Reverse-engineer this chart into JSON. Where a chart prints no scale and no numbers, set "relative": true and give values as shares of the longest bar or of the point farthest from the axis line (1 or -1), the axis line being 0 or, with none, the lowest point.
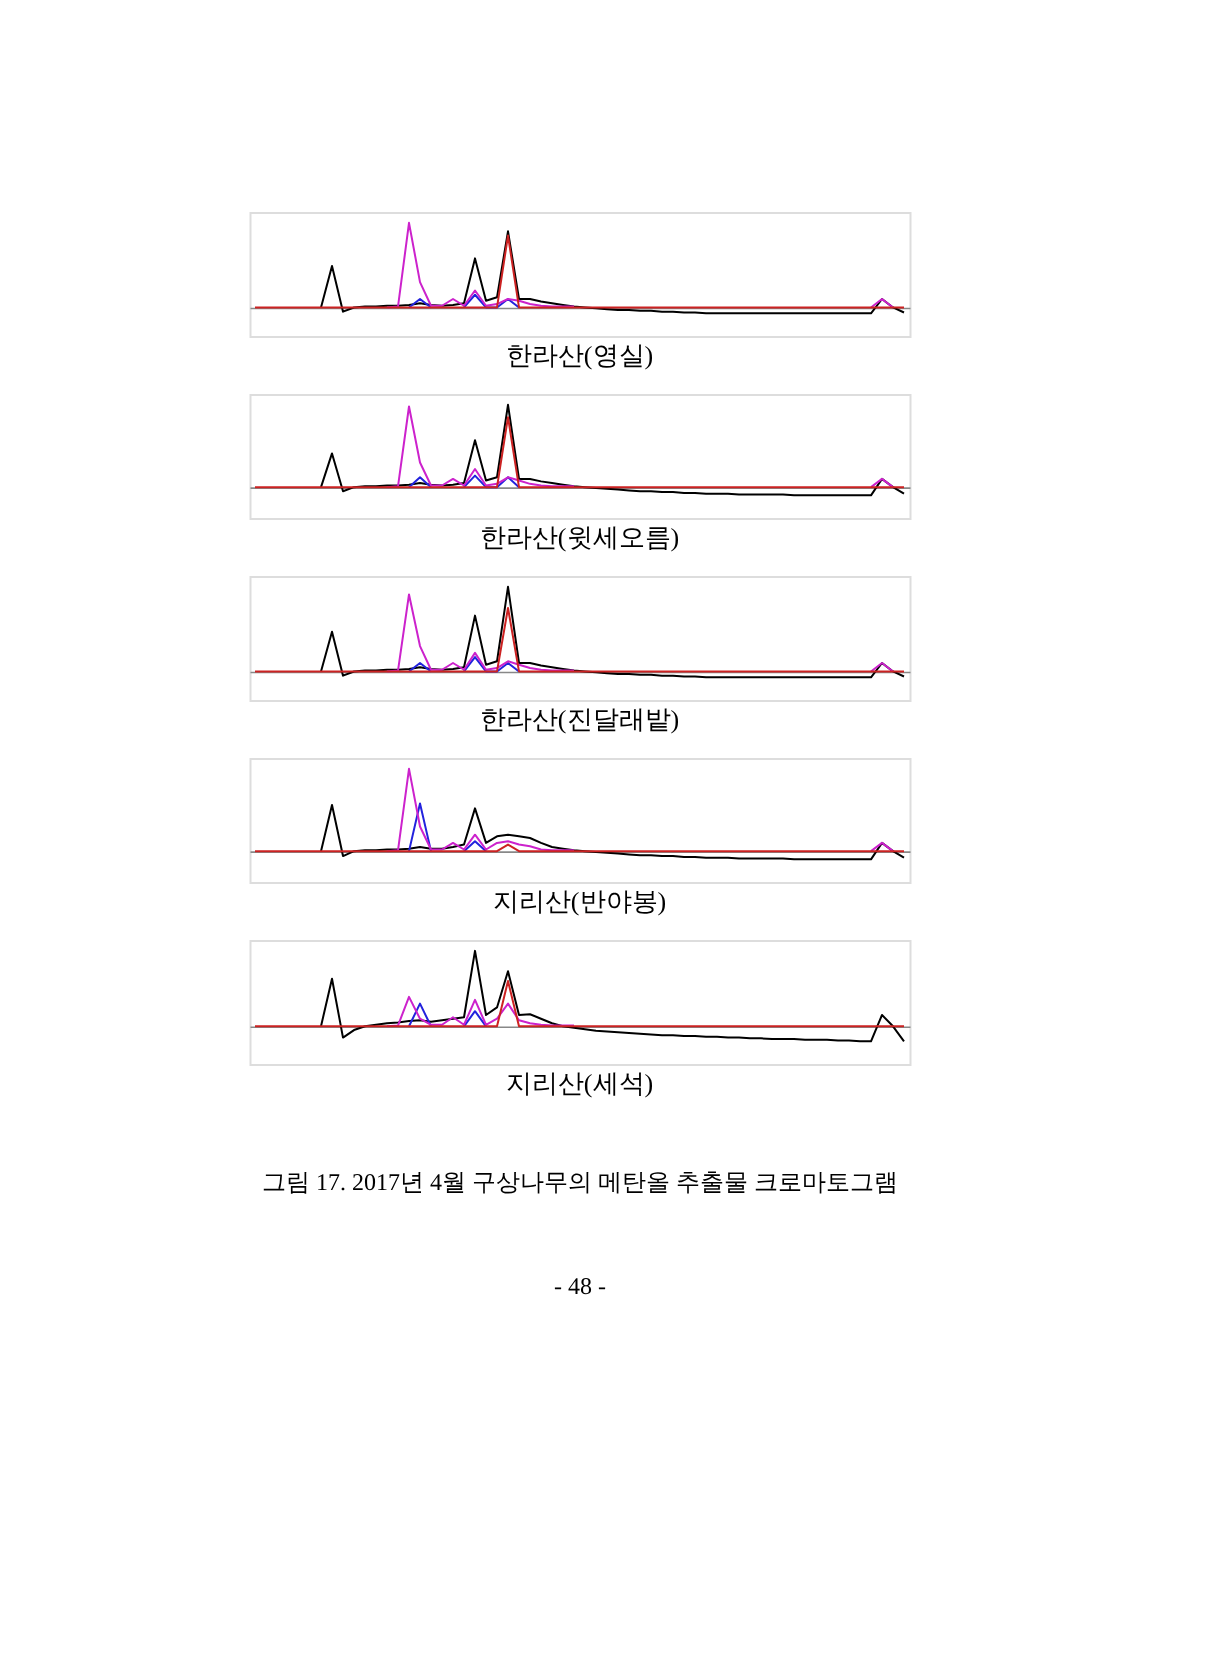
{
  "chart_data": [
    {
      "type": "line",
      "relative": true,
      "title": "한라산(영실)",
      "categories": [
        null,
        null,
        null,
        null,
        null,
        null,
        null,
        null,
        null,
        null,
        null,
        null,
        null,
        null,
        null,
        null,
        null,
        null,
        null,
        null,
        null,
        null,
        null,
        null,
        null,
        null,
        null,
        null,
        null,
        null,
        null,
        null,
        null,
        null,
        null,
        null,
        null,
        null,
        null,
        null,
        null,
        null,
        null,
        null,
        null,
        null,
        null,
        null,
        null,
        null,
        null,
        null,
        null,
        null,
        null,
        null,
        null,
        null,
        null,
        null
      ],
      "series": [
        {
          "color": "#000000",
          "values": [
            null,
            null,
            null,
            null,
            null,
            null,
            0,
            0.49,
            -0.05,
            0,
            0.01,
            0.01,
            0.02,
            0.02,
            0.03,
            0.05,
            0.03,
            0.02,
            0.03,
            0.05,
            0.58,
            0.08,
            0.12,
            0.9,
            0.1,
            0.1,
            0.07,
            0.05,
            0.03,
            0.01,
            0,
            -0.01,
            -0.02,
            -0.03,
            -0.03,
            -0.04,
            -0.04,
            -0.05,
            -0.05,
            -0.06,
            -0.06,
            -0.07,
            -0.07,
            -0.07,
            -0.07,
            -0.07,
            -0.07,
            -0.07,
            -0.07,
            -0.07,
            -0.07,
            -0.07,
            -0.07,
            -0.07,
            -0.07,
            -0.07,
            -0.07,
            0.1,
            0,
            -0.06
          ]
        },
        {
          "color": "#2222dd",
          "values": [
            null,
            null,
            null,
            null,
            null,
            null,
            null,
            null,
            null,
            null,
            null,
            null,
            null,
            null,
            0,
            0.1,
            0,
            null,
            null,
            0,
            0.15,
            0,
            0,
            0.1,
            0,
            null,
            null,
            null,
            null,
            null,
            null,
            null,
            null,
            null,
            null,
            null,
            null,
            null,
            null,
            null,
            null,
            null,
            null,
            null,
            null,
            null,
            null,
            null,
            null,
            null,
            null,
            null,
            null,
            null,
            null,
            null,
            null,
            null,
            null,
            null
          ]
        },
        {
          "color": "#cc22cc",
          "values": [
            null,
            null,
            null,
            null,
            null,
            null,
            null,
            null,
            null,
            null,
            null,
            null,
            0,
            0.01,
            1.0,
            0.3,
            0.02,
            0.02,
            0.1,
            0.02,
            0.2,
            0.02,
            0.04,
            0.1,
            0.08,
            0.04,
            0.02,
            0.01,
            0.01,
            0.01,
            null,
            null,
            null,
            null,
            null,
            null,
            null,
            null,
            null,
            null,
            null,
            null,
            null,
            null,
            null,
            null,
            null,
            null,
            null,
            null,
            null,
            null,
            null,
            null,
            null,
            null,
            0,
            0.1,
            0,
            null
          ]
        },
        {
          "color": "#cc2222",
          "values": [
            0,
            0,
            0,
            0,
            0,
            0,
            0,
            0,
            0,
            0,
            0,
            0,
            0,
            0,
            0,
            0,
            0,
            0,
            0,
            0,
            0,
            0,
            0,
            0.85,
            0,
            0,
            0,
            0,
            0,
            0,
            0,
            0,
            0,
            0,
            0,
            0,
            0,
            0,
            0,
            0,
            0,
            0,
            0,
            0,
            0,
            0,
            0,
            0,
            0,
            0,
            0,
            0,
            0,
            0,
            0,
            0,
            0,
            0,
            0,
            0
          ]
        }
      ]
    },
    {
      "type": "line",
      "relative": true,
      "title": "한라산(윗세오름)",
      "categories": [
        null,
        null,
        null,
        null,
        null,
        null,
        null,
        null,
        null,
        null,
        null,
        null,
        null,
        null,
        null,
        null,
        null,
        null,
        null,
        null,
        null,
        null,
        null,
        null,
        null,
        null,
        null,
        null,
        null,
        null,
        null,
        null,
        null,
        null,
        null,
        null,
        null,
        null,
        null,
        null,
        null,
        null,
        null,
        null,
        null,
        null,
        null,
        null,
        null,
        null,
        null,
        null,
        null,
        null,
        null,
        null,
        null,
        null,
        null,
        null
      ],
      "series": [
        {
          "color": "#000000",
          "values": [
            null,
            null,
            null,
            null,
            null,
            null,
            0,
            0.41,
            -0.05,
            0,
            0.01,
            0.01,
            0.02,
            0.02,
            0.03,
            0.05,
            0.03,
            0.02,
            0.03,
            0.05,
            0.57,
            0.08,
            0.12,
            1.0,
            0.1,
            0.1,
            0.07,
            0.05,
            0.03,
            0.01,
            0,
            -0.01,
            -0.02,
            -0.03,
            -0.04,
            -0.05,
            -0.05,
            -0.06,
            -0.06,
            -0.07,
            -0.07,
            -0.08,
            -0.08,
            -0.08,
            -0.09,
            -0.09,
            -0.09,
            -0.09,
            -0.09,
            -0.1,
            -0.1,
            -0.1,
            -0.1,
            -0.1,
            -0.1,
            -0.1,
            -0.1,
            0.1,
            0,
            -0.08
          ]
        },
        {
          "color": "#2222dd",
          "values": [
            null,
            null,
            null,
            null,
            null,
            null,
            null,
            null,
            null,
            null,
            null,
            null,
            null,
            null,
            0,
            0.12,
            0,
            null,
            null,
            0,
            0.14,
            0,
            0,
            0.12,
            0,
            null,
            null,
            null,
            null,
            null,
            null,
            null,
            null,
            null,
            null,
            null,
            null,
            null,
            null,
            null,
            null,
            null,
            null,
            null,
            null,
            null,
            null,
            null,
            null,
            null,
            null,
            null,
            null,
            null,
            null,
            null,
            null,
            null,
            null,
            null
          ]
        },
        {
          "color": "#cc22cc",
          "values": [
            null,
            null,
            null,
            null,
            null,
            null,
            null,
            null,
            null,
            null,
            null,
            null,
            0,
            0.01,
            0.98,
            0.3,
            0.02,
            0.02,
            0.1,
            0.02,
            0.22,
            0.02,
            0.04,
            0.12,
            0.08,
            0.04,
            0.02,
            0.01,
            0.01,
            0.01,
            null,
            null,
            null,
            null,
            null,
            null,
            null,
            null,
            null,
            null,
            null,
            null,
            null,
            null,
            null,
            null,
            null,
            null,
            null,
            null,
            null,
            null,
            null,
            null,
            null,
            null,
            0,
            0.1,
            0,
            null
          ]
        },
        {
          "color": "#cc2222",
          "values": [
            0,
            0,
            0,
            0,
            0,
            0,
            0,
            0,
            0,
            0,
            0,
            0,
            0,
            0,
            0,
            0,
            0,
            0,
            0,
            0,
            0,
            0,
            0,
            0.85,
            0,
            0,
            0,
            0,
            0,
            0,
            0,
            0,
            0,
            0,
            0,
            0,
            0,
            0,
            0,
            0,
            0,
            0,
            0,
            0,
            0,
            0,
            0,
            0,
            0,
            0,
            0,
            0,
            0,
            0,
            0,
            0,
            0,
            0,
            0,
            0
          ]
        }
      ]
    },
    {
      "type": "line",
      "relative": true,
      "title": "한라산(진달래밭)",
      "categories": [
        null,
        null,
        null,
        null,
        null,
        null,
        null,
        null,
        null,
        null,
        null,
        null,
        null,
        null,
        null,
        null,
        null,
        null,
        null,
        null,
        null,
        null,
        null,
        null,
        null,
        null,
        null,
        null,
        null,
        null,
        null,
        null,
        null,
        null,
        null,
        null,
        null,
        null,
        null,
        null,
        null,
        null,
        null,
        null,
        null,
        null,
        null,
        null,
        null,
        null,
        null,
        null,
        null,
        null,
        null,
        null,
        null,
        null,
        null,
        null
      ],
      "series": [
        {
          "color": "#000000",
          "values": [
            null,
            null,
            null,
            null,
            null,
            null,
            0,
            0.47,
            -0.05,
            0,
            0.01,
            0.01,
            0.02,
            0.02,
            0.03,
            0.05,
            0.03,
            0.02,
            0.03,
            0.05,
            0.66,
            0.08,
            0.12,
            1.0,
            0.1,
            0.1,
            0.07,
            0.05,
            0.03,
            0.01,
            0,
            -0.01,
            -0.02,
            -0.03,
            -0.03,
            -0.04,
            -0.04,
            -0.05,
            -0.05,
            -0.06,
            -0.06,
            -0.07,
            -0.07,
            -0.07,
            -0.07,
            -0.07,
            -0.07,
            -0.07,
            -0.07,
            -0.07,
            -0.07,
            -0.07,
            -0.07,
            -0.07,
            -0.07,
            -0.07,
            -0.07,
            0.1,
            0,
            -0.06
          ]
        },
        {
          "color": "#2222dd",
          "values": [
            null,
            null,
            null,
            null,
            null,
            null,
            null,
            null,
            null,
            null,
            null,
            null,
            null,
            null,
            0,
            0.1,
            0,
            null,
            null,
            0,
            0.17,
            0,
            0,
            0.1,
            0,
            null,
            null,
            null,
            null,
            null,
            null,
            null,
            null,
            null,
            null,
            null,
            null,
            null,
            null,
            null,
            null,
            null,
            null,
            null,
            null,
            null,
            null,
            null,
            null,
            null,
            null,
            null,
            null,
            null,
            null,
            null,
            null,
            null,
            null,
            null
          ]
        },
        {
          "color": "#cc22cc",
          "values": [
            null,
            null,
            null,
            null,
            null,
            null,
            null,
            null,
            null,
            null,
            null,
            null,
            0,
            0.01,
            0.91,
            0.3,
            0.02,
            0.02,
            0.1,
            0.02,
            0.22,
            0.02,
            0.04,
            0.12,
            0.08,
            0.04,
            0.02,
            0.01,
            0.01,
            0.01,
            null,
            null,
            null,
            null,
            null,
            null,
            null,
            null,
            null,
            null,
            null,
            null,
            null,
            null,
            null,
            null,
            null,
            null,
            null,
            null,
            null,
            null,
            null,
            null,
            null,
            null,
            0,
            0.1,
            0,
            null
          ]
        },
        {
          "color": "#cc2222",
          "values": [
            0,
            0,
            0,
            0,
            0,
            0,
            0,
            0,
            0,
            0,
            0,
            0,
            0,
            0,
            0,
            0,
            0,
            0,
            0,
            0,
            0,
            0,
            0,
            0.75,
            0,
            0,
            0,
            0,
            0,
            0,
            0,
            0,
            0,
            0,
            0,
            0,
            0,
            0,
            0,
            0,
            0,
            0,
            0,
            0,
            0,
            0,
            0,
            0,
            0,
            0,
            0,
            0,
            0,
            0,
            0,
            0,
            0,
            0,
            0,
            0
          ]
        }
      ]
    },
    {
      "type": "line",
      "relative": true,
      "title": "지리산(반야봉)",
      "categories": [
        null,
        null,
        null,
        null,
        null,
        null,
        null,
        null,
        null,
        null,
        null,
        null,
        null,
        null,
        null,
        null,
        null,
        null,
        null,
        null,
        null,
        null,
        null,
        null,
        null,
        null,
        null,
        null,
        null,
        null,
        null,
        null,
        null,
        null,
        null,
        null,
        null,
        null,
        null,
        null,
        null,
        null,
        null,
        null,
        null,
        null,
        null,
        null,
        null,
        null,
        null,
        null,
        null,
        null,
        null,
        null,
        null,
        null,
        null,
        null
      ],
      "series": [
        {
          "color": "#000000",
          "values": [
            null,
            null,
            null,
            null,
            null,
            null,
            0,
            0.56,
            -0.06,
            0,
            0.01,
            0.01,
            0.02,
            0.02,
            0.03,
            0.05,
            0.03,
            0.03,
            0.05,
            0.08,
            0.52,
            0.1,
            0.18,
            0.2,
            0.18,
            0.16,
            0.1,
            0.05,
            0.03,
            0.01,
            0,
            -0.01,
            -0.02,
            -0.03,
            -0.04,
            -0.05,
            -0.05,
            -0.06,
            -0.06,
            -0.07,
            -0.07,
            -0.08,
            -0.08,
            -0.08,
            -0.09,
            -0.09,
            -0.09,
            -0.09,
            -0.09,
            -0.1,
            -0.1,
            -0.1,
            -0.1,
            -0.1,
            -0.1,
            -0.1,
            -0.1,
            0.1,
            0,
            -0.08
          ]
        },
        {
          "color": "#2222dd",
          "values": [
            null,
            null,
            null,
            null,
            null,
            null,
            null,
            null,
            null,
            null,
            null,
            null,
            null,
            null,
            0,
            0.58,
            0,
            null,
            null,
            0,
            0.12,
            0,
            null,
            null,
            null,
            null,
            null,
            null,
            null,
            null,
            null,
            null,
            null,
            null,
            null,
            null,
            null,
            null,
            null,
            null,
            null,
            null,
            null,
            null,
            null,
            null,
            null,
            null,
            null,
            null,
            null,
            null,
            null,
            null,
            null,
            null,
            null,
            null,
            null,
            null
          ]
        },
        {
          "color": "#cc22cc",
          "values": [
            null,
            null,
            null,
            null,
            null,
            null,
            null,
            null,
            null,
            null,
            null,
            null,
            0,
            0.01,
            1.0,
            0.3,
            0.02,
            0.02,
            0.1,
            0.02,
            0.2,
            0.02,
            0.1,
            0.12,
            0.08,
            0.06,
            0.02,
            0.01,
            0.01,
            0.01,
            null,
            null,
            null,
            null,
            null,
            null,
            null,
            null,
            null,
            null,
            null,
            null,
            null,
            null,
            null,
            null,
            null,
            null,
            null,
            null,
            null,
            null,
            null,
            null,
            null,
            null,
            0,
            0.1,
            0,
            null
          ]
        },
        {
          "color": "#cc2222",
          "values": [
            0,
            0,
            0,
            0,
            0,
            0,
            0,
            0,
            0,
            0,
            0,
            0,
            0,
            0,
            0,
            0,
            0,
            0,
            0,
            0,
            0,
            0,
            0,
            0.08,
            0,
            0,
            0,
            0,
            0,
            0,
            0,
            0,
            0,
            0,
            0,
            0,
            0,
            0,
            0,
            0,
            0,
            0,
            0,
            0,
            0,
            0,
            0,
            0,
            0,
            0,
            0,
            0,
            0,
            0,
            0,
            0,
            0,
            0,
            0,
            0
          ]
        }
      ]
    },
    {
      "type": "line",
      "relative": true,
      "title": "지리산(세석)",
      "categories": [
        null,
        null,
        null,
        null,
        null,
        null,
        null,
        null,
        null,
        null,
        null,
        null,
        null,
        null,
        null,
        null,
        null,
        null,
        null,
        null,
        null,
        null,
        null,
        null,
        null,
        null,
        null,
        null,
        null,
        null,
        null,
        null,
        null,
        null,
        null,
        null,
        null,
        null,
        null,
        null,
        null,
        null,
        null,
        null,
        null,
        null,
        null,
        null,
        null,
        null,
        null,
        null,
        null,
        null,
        null,
        null,
        null,
        null,
        null,
        null
      ],
      "series": [
        {
          "color": "#000000",
          "values": [
            null,
            null,
            null,
            null,
            null,
            null,
            0,
            0.63,
            -0.15,
            -0.05,
            0,
            0.02,
            0.04,
            0.05,
            0.07,
            0.08,
            0.06,
            0.08,
            0.1,
            0.12,
            1.0,
            0.15,
            0.25,
            0.73,
            0.15,
            0.16,
            0.1,
            0.04,
            0,
            -0.02,
            -0.04,
            -0.06,
            -0.07,
            -0.08,
            -0.09,
            -0.1,
            -0.11,
            -0.12,
            -0.12,
            -0.13,
            -0.13,
            -0.14,
            -0.14,
            -0.15,
            -0.15,
            -0.16,
            -0.16,
            -0.17,
            -0.17,
            -0.17,
            -0.18,
            -0.18,
            -0.18,
            -0.19,
            -0.19,
            -0.2,
            -0.2,
            0.15,
            0,
            -0.2
          ]
        },
        {
          "color": "#2222dd",
          "values": [
            null,
            null,
            null,
            null,
            null,
            null,
            null,
            null,
            null,
            null,
            null,
            null,
            null,
            null,
            0,
            0.3,
            0,
            null,
            null,
            0,
            0.2,
            0,
            null,
            null,
            null,
            null,
            null,
            null,
            null,
            null,
            null,
            null,
            null,
            null,
            null,
            null,
            null,
            null,
            null,
            null,
            null,
            null,
            null,
            null,
            null,
            null,
            null,
            null,
            null,
            null,
            null,
            null,
            null,
            null,
            null,
            null,
            null,
            null,
            null,
            null
          ]
        },
        {
          "color": "#cc22cc",
          "values": [
            null,
            null,
            null,
            null,
            null,
            null,
            null,
            null,
            null,
            null,
            null,
            null,
            0,
            0.01,
            0.39,
            0.1,
            0.02,
            0.02,
            0.12,
            0.02,
            0.35,
            0.02,
            0.1,
            0.3,
            0.08,
            0.04,
            0.02,
            0.01,
            0.01,
            0.01,
            null,
            null,
            null,
            null,
            null,
            null,
            null,
            null,
            null,
            null,
            null,
            null,
            null,
            null,
            null,
            null,
            null,
            null,
            null,
            null,
            null,
            null,
            null,
            null,
            null,
            null,
            null,
            null,
            null,
            null
          ]
        },
        {
          "color": "#cc2222",
          "values": [
            0,
            0,
            0,
            0,
            0,
            0,
            0,
            0,
            0,
            0,
            0,
            0,
            0,
            0,
            0,
            0,
            0,
            0,
            0,
            0,
            0,
            0,
            0,
            0.6,
            0,
            0,
            0,
            0,
            0,
            0,
            0,
            0,
            0,
            0,
            0,
            0,
            0,
            0,
            0,
            0,
            0,
            0,
            0,
            0,
            0,
            0,
            0,
            0,
            0,
            0,
            0,
            0,
            0,
            0,
            0,
            0,
            0,
            0,
            0,
            0
          ]
        }
      ],
      "annotations": [
        "그림 17. 2017년 4월 구상나무의 메탄올 추출물 크로마토그램",
        "- 48 -"
      ]
    }
  ]
}
